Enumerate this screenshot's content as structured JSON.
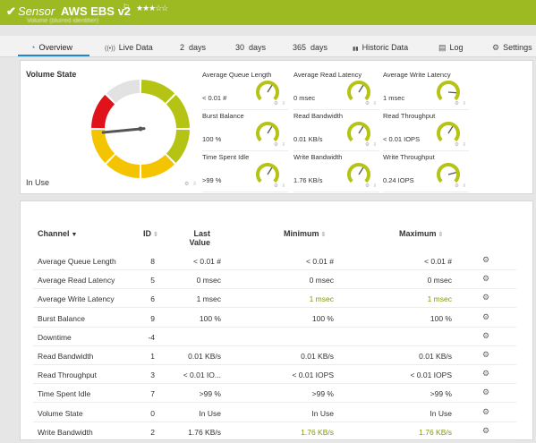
{
  "header": {
    "check_icon": "✔",
    "sensor_word": "Sensor",
    "sensor_name": "AWS EBS v2",
    "flag_icon": "⚐",
    "stars": "★★★☆☆",
    "subtitle": "Volume (blurred identifier)"
  },
  "tabs": [
    {
      "icon": "◔",
      "label": "Overview",
      "active": true
    },
    {
      "icon": "((•))",
      "label": "Live Data"
    },
    {
      "icon": "",
      "label": "2  days"
    },
    {
      "icon": "",
      "label": "30  days"
    },
    {
      "icon": "",
      "label": "365  days"
    },
    {
      "icon": "▮▮",
      "label": "Historic Data"
    },
    {
      "icon": "▤",
      "label": "Log"
    },
    {
      "icon": "⚙",
      "label": "Settings"
    }
  ],
  "overview": {
    "volume_state_title": "Volume State",
    "volume_state_value": "In Use",
    "volume_state_needle_fraction": 0.86,
    "gauges": [
      {
        "label": "Average Queue Length",
        "value": "< 0.01 #",
        "needle": 0.62
      },
      {
        "label": "Average Read Latency",
        "value": "0 msec",
        "needle": 0.62
      },
      {
        "label": "Average Write Latency",
        "value": "1 msec",
        "needle": 0.85
      },
      {
        "label": "Burst Balance",
        "value": "100 %",
        "needle": 0.62
      },
      {
        "label": "Read Bandwidth",
        "value": "0.01 KB/s",
        "needle": 0.62
      },
      {
        "label": "Read Throughput",
        "value": "< 0.01 IOPS",
        "needle": 0.62
      },
      {
        "label": "Time Spent Idle",
        "value": ">99 %",
        "needle": 0.62
      },
      {
        "label": "Write Bandwidth",
        "value": "1.76 KB/s",
        "needle": 0.62
      },
      {
        "label": "Write Throughput",
        "value": "0.24 IOPS",
        "needle": 0.78
      }
    ]
  },
  "table": {
    "headers": {
      "channel": "Channel",
      "id": "ID",
      "last_value_1": "Last",
      "last_value_2": "Value",
      "minimum": "Minimum",
      "maximum": "Maximum"
    },
    "rows": [
      {
        "channel": "Average Queue Length",
        "id": "8",
        "last": "< 0.01 #",
        "min": "< 0.01 #",
        "max": "< 0.01 #"
      },
      {
        "channel": "Average Read Latency",
        "id": "5",
        "last": "0 msec",
        "min": "0 msec",
        "max": "0 msec"
      },
      {
        "channel": "Average Write Latency",
        "id": "6",
        "last": "1 msec",
        "min": "1 msec",
        "max": "1 msec"
      },
      {
        "channel": "Burst Balance",
        "id": "9",
        "last": "100 %",
        "min": "100 %",
        "max": "100 %"
      },
      {
        "channel": "Downtime",
        "id": "-4",
        "last": "",
        "min": "",
        "max": ""
      },
      {
        "channel": "Read Bandwidth",
        "id": "1",
        "last": "0.01 KB/s",
        "min": "0.01 KB/s",
        "max": "0.01 KB/s"
      },
      {
        "channel": "Read Throughput",
        "id": "3",
        "last": "< 0.01 IO...",
        "min": "< 0.01 IOPS",
        "max": "< 0.01 IOPS"
      },
      {
        "channel": "Time Spent Idle",
        "id": "7",
        "last": ">99 %",
        "min": ">99 %",
        "max": ">99 %"
      },
      {
        "channel": "Volume State",
        "id": "0",
        "last": "In Use",
        "min": "In Use",
        "max": "In Use"
      },
      {
        "channel": "Write Bandwidth",
        "id": "2",
        "last": "1.76 KB/s",
        "min": "1.76 KB/s",
        "max": "1.76 KB/s"
      }
    ]
  },
  "colors": {
    "header_green": "#9dba23",
    "gauge_green": "#b5c414",
    "gauge_yellow": "#f5c400",
    "gauge_red": "#e0131a",
    "gauge_gray": "#e2e2e2",
    "accent_blue": "#1e88c8"
  }
}
